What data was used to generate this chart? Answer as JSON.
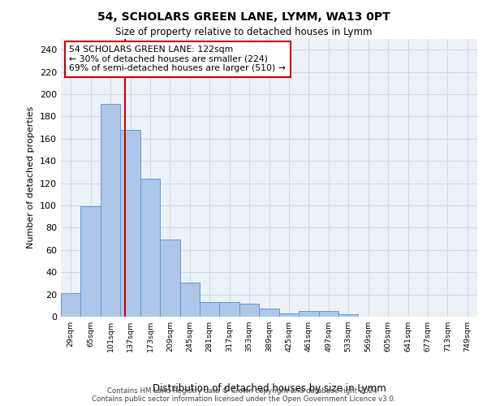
{
  "title1": "54, SCHOLARS GREEN LANE, LYMM, WA13 0PT",
  "title2": "Size of property relative to detached houses in Lymm",
  "xlabel": "Distribution of detached houses by size in Lymm",
  "ylabel": "Number of detached properties",
  "footer1": "Contains HM Land Registry data © Crown copyright and database right 2024.",
  "footer2": "Contains public sector information licensed under the Open Government Licence v3.0.",
  "bin_labels": [
    "29sqm",
    "65sqm",
    "101sqm",
    "137sqm",
    "173sqm",
    "209sqm",
    "245sqm",
    "281sqm",
    "317sqm",
    "353sqm",
    "389sqm",
    "425sqm",
    "461sqm",
    "497sqm",
    "533sqm",
    "569sqm",
    "605sqm",
    "641sqm",
    "677sqm",
    "713sqm",
    "749sqm"
  ],
  "bar_values": [
    21,
    99,
    191,
    168,
    124,
    69,
    31,
    13,
    13,
    12,
    7,
    3,
    5,
    5,
    2,
    0,
    0,
    0,
    0,
    0,
    0
  ],
  "bar_color": "#aec6e8",
  "bar_edge_color": "#5b9bd5",
  "grid_color": "#d0d8e8",
  "background_color": "#edf2f9",
  "annotation_line1": "54 SCHOLARS GREEN LANE: 122sqm",
  "annotation_line2": "← 30% of detached houses are smaller (224)",
  "annotation_line3": "69% of semi-detached houses are larger (510) →",
  "annotation_box_color": "#ffffff",
  "annotation_box_edge": "#cc0000",
  "vline_x": 2.72,
  "vline_color": "#cc0000",
  "ylim": [
    0,
    250
  ],
  "yticks": [
    0,
    20,
    40,
    60,
    80,
    100,
    120,
    140,
    160,
    180,
    200,
    220,
    240
  ]
}
